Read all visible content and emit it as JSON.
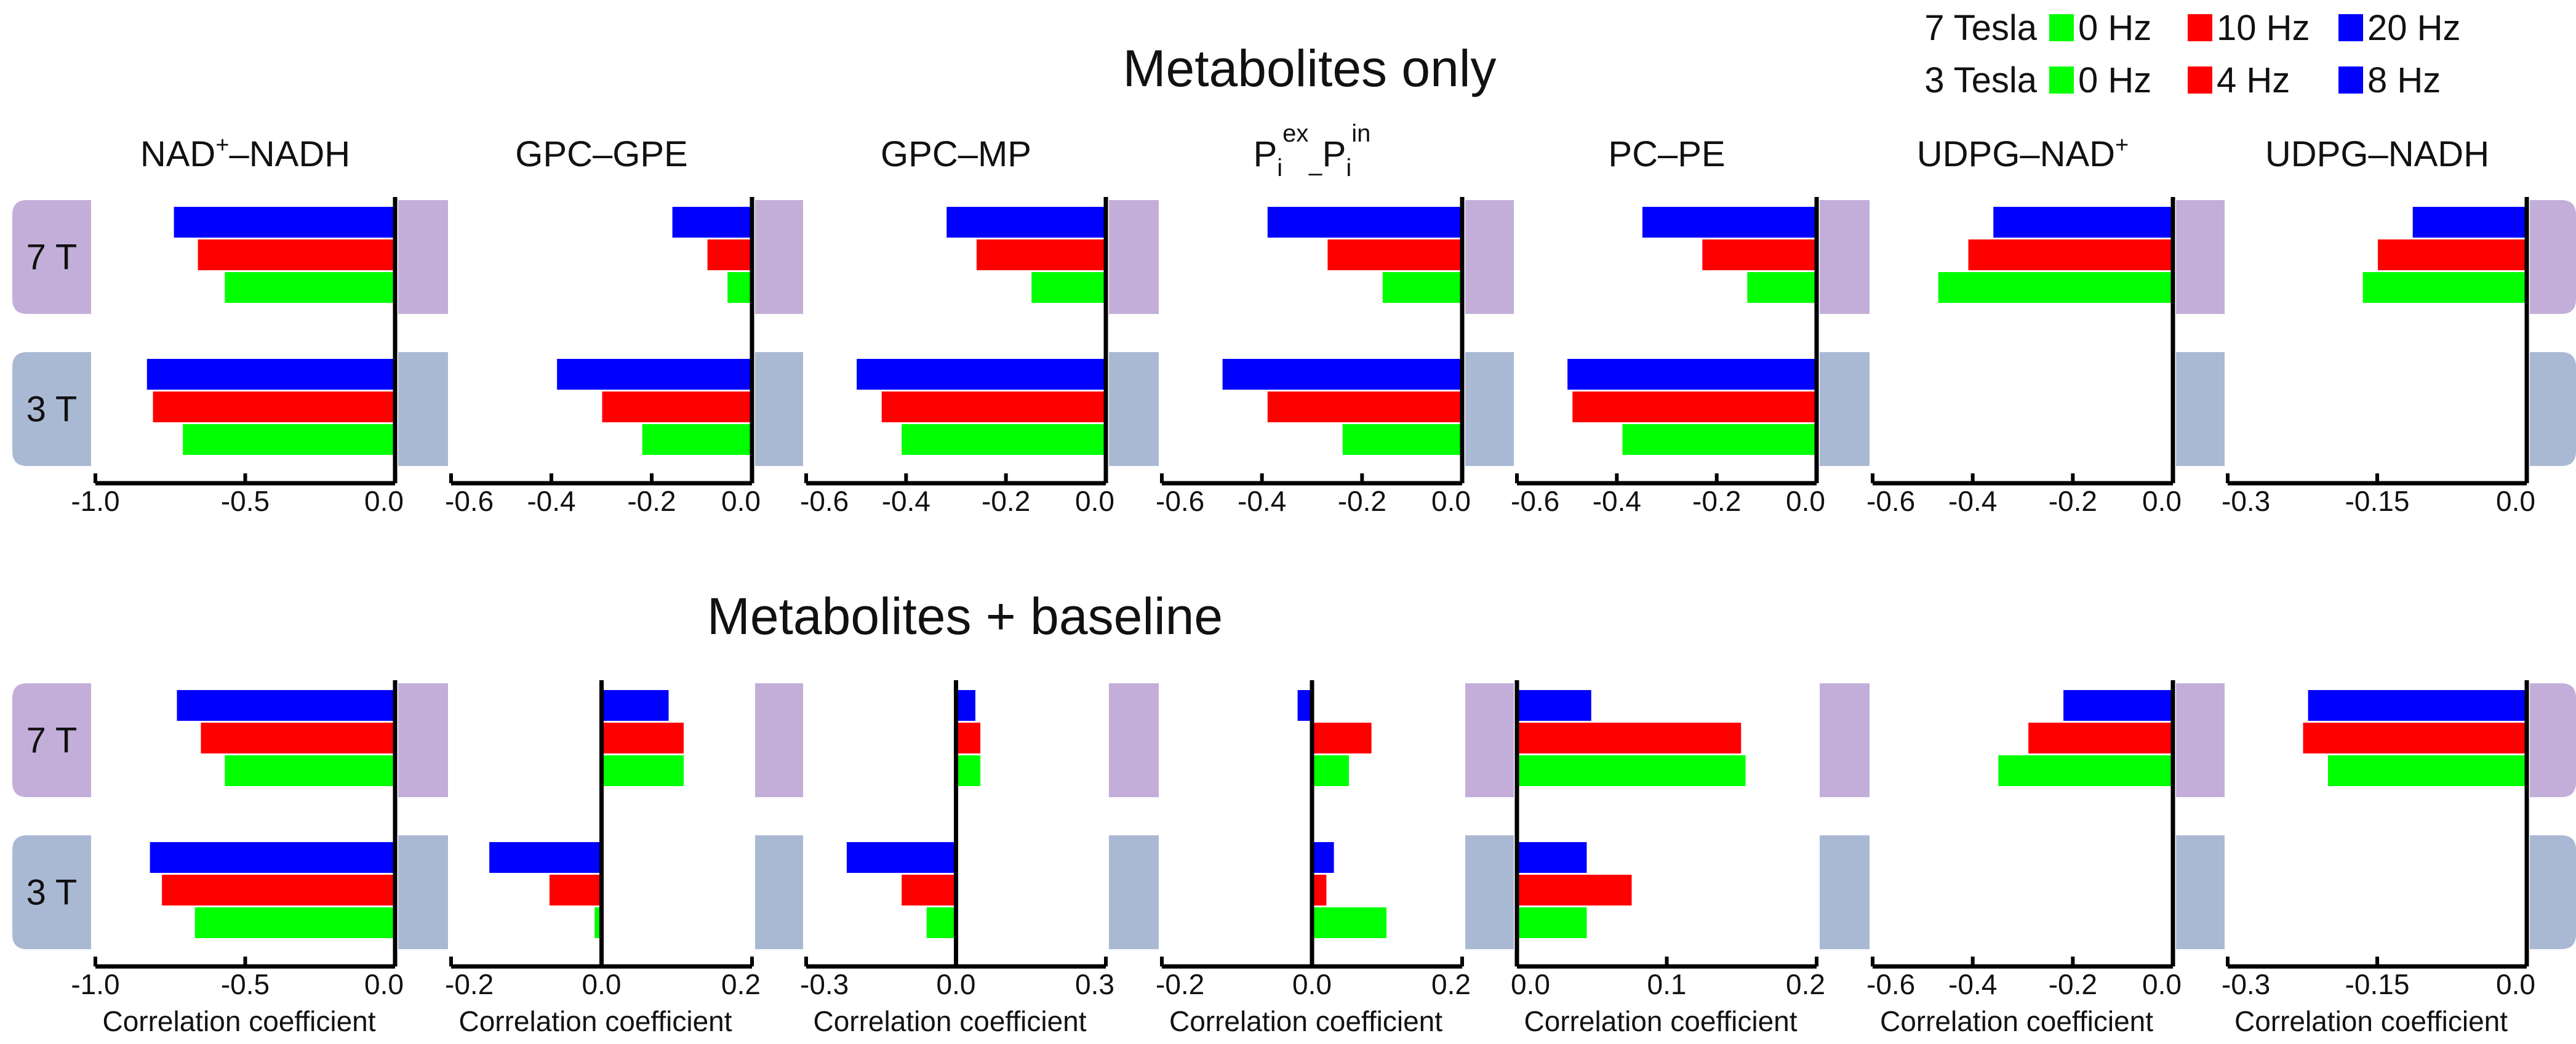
{
  "figure": {
    "top_title": "Metabolites only",
    "bottom_title": "Metabolites + baseline",
    "xlabel": "Correlation coefficient"
  },
  "legend": {
    "rows": [
      {
        "field": "7 Tesla",
        "entries": [
          {
            "label": "0 Hz",
            "color": "#00ff00"
          },
          {
            "label": "10 Hz",
            "color": "#ff0000"
          },
          {
            "label": "20 Hz",
            "color": "#0000ff"
          }
        ]
      },
      {
        "field": "3 Tesla",
        "entries": [
          {
            "label": "0 Hz",
            "color": "#00ff00"
          },
          {
            "label": "4 Hz",
            "color": "#ff0000"
          },
          {
            "label": "8 Hz",
            "color": "#0000ff"
          }
        ]
      }
    ]
  },
  "row_labels": {
    "t7": {
      "label": "7 T",
      "color": "#c3aed9"
    },
    "t3": {
      "label": "3 T",
      "color": "#aab9d3"
    }
  },
  "chart_data": [
    {
      "type": "bar",
      "orientation": "horizontal",
      "section": "Metabolites only",
      "title_main": "NAD",
      "title_sup": "+",
      "title_rest": "–NADH",
      "xlim": [
        -1.0,
        0.0
      ],
      "ticks": [
        -1.0,
        -0.5,
        0.0
      ],
      "tick_labels": [
        "-1.0",
        "-0.5",
        "0.0"
      ],
      "series_7T": {
        "blue": -0.74,
        "red": -0.66,
        "green": -0.57
      },
      "series_3T": {
        "blue": -0.83,
        "red": -0.81,
        "green": -0.71
      }
    },
    {
      "type": "bar",
      "orientation": "horizontal",
      "section": "Metabolites only",
      "title_main": "GPC–GPE",
      "xlim": [
        -0.6,
        0.0
      ],
      "ticks": [
        -0.6,
        -0.4,
        -0.2,
        0.0
      ],
      "tick_labels": [
        "-0.6",
        "-0.4",
        "-0.2",
        "0.0"
      ],
      "series_7T": {
        "blue": -0.16,
        "red": -0.09,
        "green": -0.05
      },
      "series_3T": {
        "blue": -0.39,
        "red": -0.3,
        "green": -0.22
      }
    },
    {
      "type": "bar",
      "orientation": "horizontal",
      "section": "Metabolites only",
      "title_main": "GPC–MP",
      "xlim": [
        -0.6,
        0.0
      ],
      "ticks": [
        -0.6,
        -0.4,
        -0.2,
        0.0
      ],
      "tick_labels": [
        "-0.6",
        "-0.4",
        "-0.2",
        "0.0"
      ],
      "series_7T": {
        "blue": -0.32,
        "red": -0.26,
        "green": -0.15
      },
      "series_3T": {
        "blue": -0.5,
        "red": -0.45,
        "green": -0.41
      }
    },
    {
      "type": "bar",
      "orientation": "horizontal",
      "section": "Metabolites only",
      "title_pi": true,
      "title_sup1": "ex",
      "title_sup2": "in",
      "title_dash": "–",
      "xlim": [
        -0.6,
        0.0
      ],
      "ticks": [
        -0.6,
        -0.4,
        -0.2,
        0.0
      ],
      "tick_labels": [
        "-0.6",
        "-0.4",
        "-0.2",
        "0.0"
      ],
      "series_7T": {
        "blue": -0.39,
        "red": -0.27,
        "green": -0.16
      },
      "series_3T": {
        "blue": -0.48,
        "red": -0.39,
        "green": -0.24
      }
    },
    {
      "type": "bar",
      "orientation": "horizontal",
      "section": "Metabolites only",
      "title_main": "PC–PE",
      "xlim": [
        -0.6,
        0.0
      ],
      "ticks": [
        -0.6,
        -0.4,
        -0.2,
        0.0
      ],
      "tick_labels": [
        "-0.6",
        "-0.4",
        "-0.2",
        "0.0"
      ],
      "series_7T": {
        "blue": -0.35,
        "red": -0.23,
        "green": -0.14
      },
      "series_3T": {
        "blue": -0.5,
        "red": -0.49,
        "green": -0.39
      }
    },
    {
      "type": "bar",
      "orientation": "horizontal",
      "section": "Metabolites only",
      "title_main": "UDPG–NAD",
      "title_sup": "+",
      "xlim": [
        -0.6,
        0.0
      ],
      "ticks": [
        -0.6,
        -0.4,
        -0.2,
        0.0
      ],
      "tick_labels": [
        "-0.6",
        "-0.4",
        "-0.2",
        "0.0"
      ],
      "series_7T": {
        "blue": -0.36,
        "red": -0.41,
        "green": -0.47
      },
      "series_3T": {}
    },
    {
      "type": "bar",
      "orientation": "horizontal",
      "section": "Metabolites only",
      "title_main": "UDPG–NADH",
      "xlim": [
        -0.3,
        0.0
      ],
      "ticks": [
        -0.3,
        -0.15,
        0.0
      ],
      "tick_labels": [
        "-0.3",
        "-0.15",
        "0.0"
      ],
      "series_7T": {
        "blue": -0.115,
        "red": -0.15,
        "green": -0.165
      },
      "series_3T": {}
    },
    {
      "type": "bar",
      "orientation": "horizontal",
      "section": "Metabolites + baseline",
      "xlim": [
        -1.0,
        0.0
      ],
      "ticks": [
        -1.0,
        -0.5,
        0.0
      ],
      "tick_labels": [
        "-1.0",
        "-0.5",
        "0.0"
      ],
      "series_7T": {
        "blue": -0.73,
        "red": -0.65,
        "green": -0.57
      },
      "series_3T": {
        "blue": -0.82,
        "red": -0.78,
        "green": -0.67
      }
    },
    {
      "type": "bar",
      "orientation": "horizontal",
      "section": "Metabolites + baseline",
      "xlim": [
        -0.2,
        0.2
      ],
      "ticks": [
        -0.2,
        0.0,
        0.2
      ],
      "tick_labels": [
        "-0.2",
        "0.0",
        "0.2"
      ],
      "series_7T": {
        "blue": 0.09,
        "red": 0.11,
        "green": 0.11
      },
      "series_3T": {
        "blue": -0.15,
        "red": -0.07,
        "green": -0.01
      }
    },
    {
      "type": "bar",
      "orientation": "horizontal",
      "section": "Metabolites + baseline",
      "xlim": [
        -0.3,
        0.3
      ],
      "ticks": [
        -0.3,
        0.0,
        0.3
      ],
      "tick_labels": [
        "-0.3",
        "0.0",
        "0.3"
      ],
      "series_7T": {
        "blue": 0.04,
        "red": 0.05,
        "green": 0.05
      },
      "series_3T": {
        "blue": -0.22,
        "red": -0.11,
        "green": -0.06
      }
    },
    {
      "type": "bar",
      "orientation": "horizontal",
      "section": "Metabolites + baseline",
      "xlim": [
        -0.2,
        0.2
      ],
      "ticks": [
        -0.2,
        0.0,
        0.2
      ],
      "tick_labels": [
        "-0.2",
        "0.0",
        "0.2"
      ],
      "series_7T": {
        "blue": -0.02,
        "red": 0.08,
        "green": 0.05
      },
      "series_3T": {
        "blue": 0.03,
        "red": 0.02,
        "green": 0.1
      }
    },
    {
      "type": "bar",
      "orientation": "horizontal",
      "section": "Metabolites + baseline",
      "xlim": [
        0.0,
        0.2
      ],
      "ticks": [
        0.0,
        0.1,
        0.2
      ],
      "tick_labels": [
        "0.0",
        "0.1",
        "0.2"
      ],
      "series_7T": {
        "blue": 0.05,
        "red": 0.15,
        "green": 0.153
      },
      "series_3T": {
        "blue": 0.047,
        "red": 0.077,
        "green": 0.047
      }
    },
    {
      "type": "bar",
      "orientation": "horizontal",
      "section": "Metabolites + baseline",
      "xlim": [
        -0.6,
        0.0
      ],
      "ticks": [
        -0.6,
        -0.4,
        -0.2,
        0.0
      ],
      "tick_labels": [
        "-0.6",
        "-0.4",
        "-0.2",
        "0.0"
      ],
      "series_7T": {
        "blue": -0.22,
        "red": -0.29,
        "green": -0.35
      },
      "series_3T": {}
    },
    {
      "type": "bar",
      "orientation": "horizontal",
      "section": "Metabolites + baseline",
      "xlim": [
        -0.3,
        0.0
      ],
      "ticks": [
        -0.3,
        -0.15,
        0.0
      ],
      "tick_labels": [
        "-0.3",
        "-0.15",
        "0.0"
      ],
      "series_7T": {
        "blue": -0.22,
        "red": -0.225,
        "green": -0.2
      },
      "series_3T": {}
    }
  ]
}
